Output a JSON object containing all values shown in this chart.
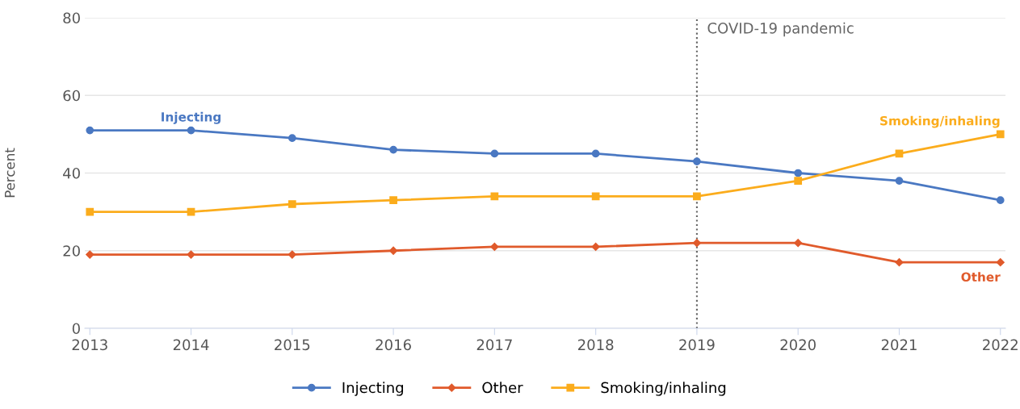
{
  "chart_data": {
    "type": "line",
    "ylabel": "Percent",
    "categories": [
      "2013",
      "2014",
      "2015",
      "2016",
      "2017",
      "2018",
      "2019",
      "2020",
      "2021",
      "2022"
    ],
    "series": [
      {
        "name": "Injecting",
        "color": "#4a78c2",
        "marker": "circle",
        "values": [
          51,
          51,
          49,
          46,
          45,
          45,
          43,
          40,
          38,
          33
        ]
      },
      {
        "name": "Other",
        "color": "#e05a2b",
        "marker": "diamond",
        "values": [
          19,
          19,
          19,
          20,
          21,
          21,
          22,
          22,
          17,
          17
        ]
      },
      {
        "name": "Smoking/inhaling",
        "color": "#fbac1c",
        "marker": "square",
        "values": [
          30,
          30,
          32,
          33,
          34,
          34,
          34,
          38,
          45,
          50
        ]
      }
    ],
    "ylim": [
      0,
      80
    ],
    "yticks": [
      0,
      20,
      40,
      60,
      80
    ],
    "grid": "y",
    "legend": "bottom",
    "line_style": "solid",
    "ref_lines": [
      {
        "axis": "x",
        "value": "2019",
        "label": "COVID-19 pandemic",
        "color": "#666666",
        "line_style": "dotted"
      }
    ],
    "annotations": [
      {
        "text": "Injecting",
        "x": "2014",
        "y": 51
      },
      {
        "text": "Smoking/inhaling",
        "x": "2022",
        "y": 50
      },
      {
        "text": "Other",
        "x": "2022",
        "y": 17
      }
    ]
  }
}
